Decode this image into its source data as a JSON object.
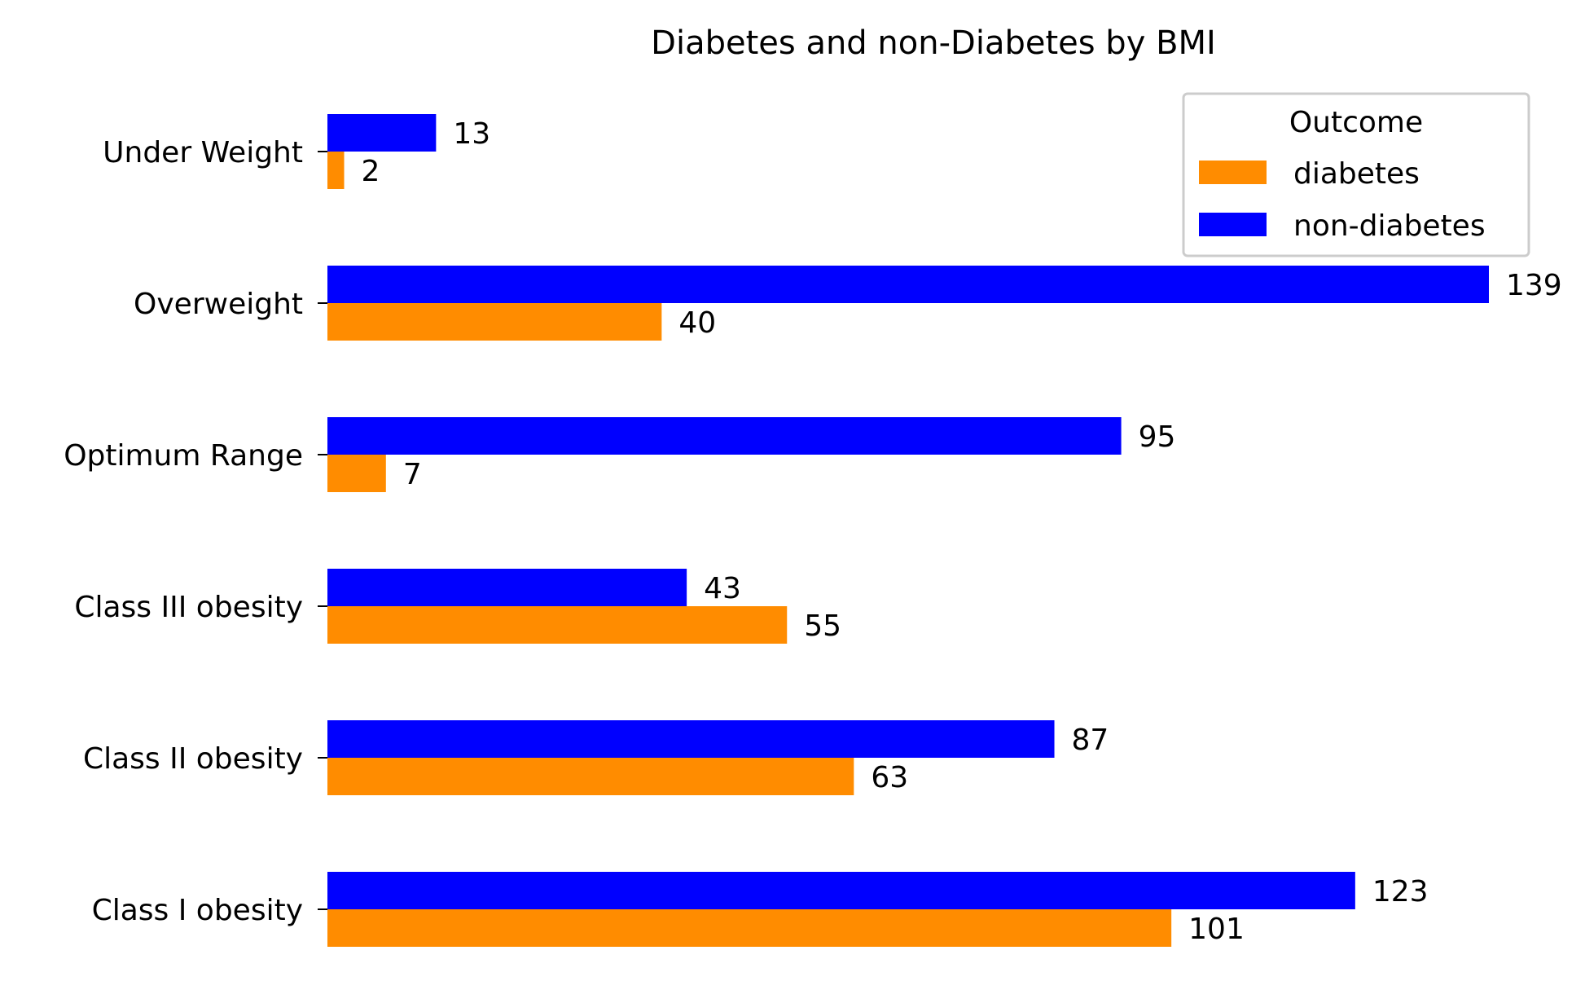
{
  "chart_data": {
    "type": "bar",
    "orientation": "horizontal",
    "title": "Diabetes and non-Diabetes by BMI",
    "xlabel": "",
    "ylabel": "",
    "categories": [
      "Under Weight",
      "Overweight",
      "Optimum Range",
      "Class III obesity",
      "Class II obesity",
      "Class I obesity"
    ],
    "series": [
      {
        "name": "non-diabetes",
        "color": "#0000ff",
        "values": [
          13,
          139,
          95,
          43,
          87,
          123
        ]
      },
      {
        "name": "diabetes",
        "color": "#ff8c00",
        "values": [
          2,
          40,
          7,
          55,
          63,
          101
        ]
      }
    ],
    "xlim": [
      0,
      139
    ],
    "grid": false,
    "legend": {
      "title": "Outcome",
      "placement": "top-right",
      "entries": [
        "diabetes",
        "non-diabetes"
      ]
    }
  }
}
